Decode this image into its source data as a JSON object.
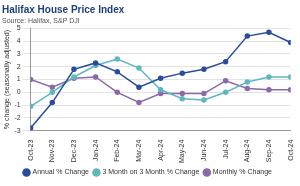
{
  "chart_data": {
    "type": "line",
    "title": "Halifax House Price Index",
    "subtitle": "Source: Halifax, S&P DJI",
    "y_label": "% change (seasonally adjusted)",
    "categories": [
      "Oct-23",
      "Nov-23",
      "Dec-23",
      "Jan-24",
      "Feb-24",
      "Mar-24",
      "Apr-24",
      "May-24",
      "Jun-24",
      "Jul-24",
      "Aug-24",
      "Sep-24",
      "Oct-24"
    ],
    "series": [
      {
        "name": "Annual % Change",
        "color": "#2a4d9b",
        "marker": "circle",
        "line_style": "solid",
        "values": [
          -2.8,
          -0.8,
          1.8,
          2.3,
          1.6,
          0.4,
          1.1,
          1.5,
          1.8,
          2.4,
          4.4,
          4.7,
          3.9
        ]
      },
      {
        "name": "3 Month on 3 Month % Change",
        "color": "#5fb8bf",
        "marker": "circle",
        "line_style": "solid",
        "values": [
          -1.1,
          0.0,
          1.2,
          2.1,
          2.6,
          1.9,
          0.2,
          -0.5,
          -0.6,
          0.0,
          0.8,
          1.2,
          1.2
        ]
      },
      {
        "name": "Monthly % Change",
        "color": "#8a6aa8",
        "marker": "circle",
        "line_style": "solid",
        "values": [
          1.0,
          0.4,
          1.1,
          1.2,
          0.0,
          -0.8,
          -0.1,
          -0.1,
          -0.1,
          0.9,
          0.3,
          0.2,
          0.2
        ]
      }
    ],
    "ylim": [
      -3,
      5
    ],
    "yticks": [
      -3,
      -2,
      -1,
      0,
      1,
      2,
      3,
      4,
      5
    ],
    "grid": true,
    "legend": "bottom"
  }
}
